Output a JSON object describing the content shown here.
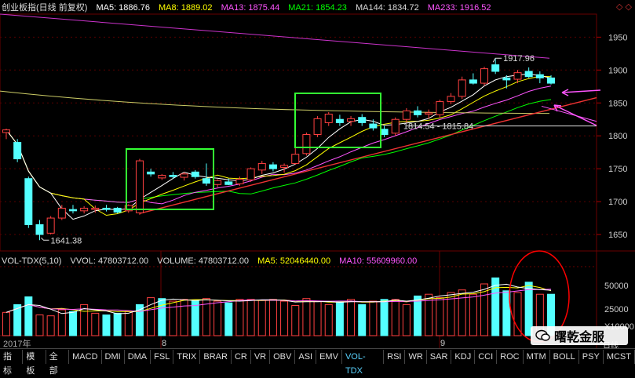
{
  "header": {
    "title": "创业板指(日线 前复权)",
    "ma5": "MA5: 1886.76",
    "ma8": "MA8: 1889.02",
    "ma13": "MA13: 1875.44",
    "ma21": "MA21: 1854.23",
    "ma144": "MA144: 1834.72",
    "ma233": "MA233: 1916.52",
    "corner_icons": "◇ ◇"
  },
  "volume_header": {
    "name": "VOL-TDX(5,10)",
    "vvol": "VVOL: 47803712.00",
    "volume": "VOLUME: 47803712.00",
    "ma5": "MA5: 52046440.00",
    "ma10": "MA10: 55609960.00"
  },
  "annotations": {
    "high": "1917.96",
    "low": "1641.38",
    "gap": "1814.54 - 1815.84"
  },
  "axis": {
    "price_ticks": [
      "1950",
      "1900",
      "1850",
      "1800",
      "1750",
      "1700",
      "1650"
    ],
    "volume_ticks": [
      "50000",
      "25000",
      "X10000"
    ],
    "month_labels": [
      "8",
      "9"
    ],
    "year_label": "2017年",
    "day_label": "日线"
  },
  "tabs": [
    "指标",
    "模板",
    "全部",
    "MACD",
    "DMI",
    "DMA",
    "FSL",
    "TRIX",
    "BRAR",
    "CR",
    "VR",
    "OBV",
    "ASI",
    "EMV",
    "VOL-TDX",
    "RSI",
    "WR",
    "SAR",
    "KDJ",
    "CCI",
    "ROC",
    "MTM",
    "BOLL",
    "PSY",
    "MCST"
  ],
  "active_tab": "VOL-TDX",
  "watermark": "曙乾金服",
  "colors": {
    "up": "#ff4040",
    "down": "#54ffff",
    "ma5": "#ffffff",
    "ma8": "#ffff00",
    "ma13": "#ff55ff",
    "ma21": "#00ff00",
    "ma144": "#cccc66",
    "ma233": "#cc33cc",
    "box": "#33ff33",
    "circle": "#ff0000"
  },
  "chart_data": {
    "type": "candlestick",
    "ylim": [
      1625,
      1985
    ],
    "candles": [
      {
        "o": 1805,
        "h": 1811,
        "l": 1795,
        "c": 1809
      },
      {
        "o": 1790,
        "h": 1795,
        "l": 1760,
        "c": 1765
      },
      {
        "o": 1735,
        "h": 1738,
        "l": 1660,
        "c": 1665
      },
      {
        "o": 1665,
        "h": 1672,
        "l": 1641.38,
        "c": 1650
      },
      {
        "o": 1652,
        "h": 1678,
        "l": 1650,
        "c": 1675
      },
      {
        "o": 1675,
        "h": 1695,
        "l": 1672,
        "c": 1690
      },
      {
        "o": 1688,
        "h": 1695,
        "l": 1682,
        "c": 1686
      },
      {
        "o": 1686,
        "h": 1693,
        "l": 1682,
        "c": 1690
      },
      {
        "o": 1688,
        "h": 1694,
        "l": 1683,
        "c": 1690
      },
      {
        "o": 1690,
        "h": 1695,
        "l": 1685,
        "c": 1688
      },
      {
        "o": 1690,
        "h": 1692,
        "l": 1682,
        "c": 1684
      },
      {
        "o": 1686,
        "h": 1696,
        "l": 1683,
        "c": 1694
      },
      {
        "o": 1683,
        "h": 1765,
        "l": 1680,
        "c": 1762
      },
      {
        "o": 1745,
        "h": 1750,
        "l": 1738,
        "c": 1742
      },
      {
        "o": 1736,
        "h": 1742,
        "l": 1733,
        "c": 1740
      },
      {
        "o": 1740,
        "h": 1745,
        "l": 1735,
        "c": 1738
      },
      {
        "o": 1737,
        "h": 1745,
        "l": 1732,
        "c": 1742
      },
      {
        "o": 1745,
        "h": 1748,
        "l": 1735,
        "c": 1738
      },
      {
        "o": 1735,
        "h": 1758,
        "l": 1724,
        "c": 1728
      },
      {
        "o": 1726,
        "h": 1734,
        "l": 1722,
        "c": 1732
      },
      {
        "o": 1730,
        "h": 1735,
        "l": 1725,
        "c": 1726
      },
      {
        "o": 1727,
        "h": 1738,
        "l": 1724,
        "c": 1734
      },
      {
        "o": 1733,
        "h": 1752,
        "l": 1730,
        "c": 1750
      },
      {
        "o": 1748,
        "h": 1762,
        "l": 1742,
        "c": 1758
      },
      {
        "o": 1756,
        "h": 1760,
        "l": 1746,
        "c": 1750
      },
      {
        "o": 1752,
        "h": 1758,
        "l": 1744,
        "c": 1755
      },
      {
        "o": 1758,
        "h": 1795,
        "l": 1756,
        "c": 1772
      },
      {
        "o": 1773,
        "h": 1805,
        "l": 1770,
        "c": 1802
      },
      {
        "o": 1802,
        "h": 1830,
        "l": 1798,
        "c": 1826
      },
      {
        "o": 1820,
        "h": 1836,
        "l": 1815,
        "c": 1833
      },
      {
        "o": 1825,
        "h": 1832,
        "l": 1815,
        "c": 1820
      },
      {
        "o": 1822,
        "h": 1830,
        "l": 1815,
        "c": 1826
      },
      {
        "o": 1828,
        "h": 1833,
        "l": 1815,
        "c": 1820
      },
      {
        "o": 1818,
        "h": 1825,
        "l": 1808,
        "c": 1812
      },
      {
        "o": 1810,
        "h": 1815,
        "l": 1798,
        "c": 1802
      },
      {
        "o": 1804,
        "h": 1828,
        "l": 1800,
        "c": 1825
      },
      {
        "o": 1825,
        "h": 1842,
        "l": 1820,
        "c": 1838
      },
      {
        "o": 1838,
        "h": 1845,
        "l": 1828,
        "c": 1832
      },
      {
        "o": 1833,
        "h": 1840,
        "l": 1826,
        "c": 1835
      },
      {
        "o": 1832,
        "h": 1855,
        "l": 1828,
        "c": 1852
      },
      {
        "o": 1852,
        "h": 1865,
        "l": 1848,
        "c": 1860
      },
      {
        "o": 1860,
        "h": 1890,
        "l": 1856,
        "c": 1885
      },
      {
        "o": 1885,
        "h": 1895,
        "l": 1878,
        "c": 1880
      },
      {
        "o": 1880,
        "h": 1905,
        "l": 1876,
        "c": 1902
      },
      {
        "o": 1908,
        "h": 1917.96,
        "l": 1894,
        "c": 1898
      },
      {
        "o": 1888,
        "h": 1892,
        "l": 1872,
        "c": 1885
      },
      {
        "o": 1886,
        "h": 1900,
        "l": 1880,
        "c": 1896
      },
      {
        "o": 1898,
        "h": 1904,
        "l": 1888,
        "c": 1890
      },
      {
        "o": 1893,
        "h": 1898,
        "l": 1880,
        "c": 1888
      },
      {
        "o": 1888,
        "h": 1892,
        "l": 1878,
        "c": 1880
      }
    ],
    "volume_ylim": [
      0,
      80000
    ],
    "volume": [
      {
        "v": 27000,
        "up": true
      },
      {
        "v": 36000,
        "up": false
      },
      {
        "v": 45000,
        "up": false
      },
      {
        "v": 24000,
        "up": true
      },
      {
        "v": 23000,
        "up": true
      },
      {
        "v": 30000,
        "up": true
      },
      {
        "v": 28000,
        "up": false
      },
      {
        "v": 36000,
        "up": true
      },
      {
        "v": 26000,
        "up": true
      },
      {
        "v": 24000,
        "up": false
      },
      {
        "v": 26000,
        "up": false
      },
      {
        "v": 28000,
        "up": true
      },
      {
        "v": 36000,
        "up": false
      },
      {
        "v": 44000,
        "up": true
      },
      {
        "v": 43000,
        "up": false
      },
      {
        "v": 40000,
        "up": true
      },
      {
        "v": 42000,
        "up": true
      },
      {
        "v": 40000,
        "up": false
      },
      {
        "v": 43000,
        "up": true
      },
      {
        "v": 40000,
        "up": true
      },
      {
        "v": 38000,
        "up": false
      },
      {
        "v": 42000,
        "up": true
      },
      {
        "v": 42000,
        "up": true
      },
      {
        "v": 41000,
        "up": true
      },
      {
        "v": 42000,
        "up": true
      },
      {
        "v": 40000,
        "up": true
      },
      {
        "v": 35000,
        "up": true
      },
      {
        "v": 43000,
        "up": true
      },
      {
        "v": 40000,
        "up": true
      },
      {
        "v": 36000,
        "up": true
      },
      {
        "v": 40000,
        "up": false
      },
      {
        "v": 42000,
        "up": true
      },
      {
        "v": 36000,
        "up": false
      },
      {
        "v": 40000,
        "up": true
      },
      {
        "v": 42000,
        "up": false
      },
      {
        "v": 42000,
        "up": true
      },
      {
        "v": 36000,
        "up": true
      },
      {
        "v": 46000,
        "up": false
      },
      {
        "v": 48000,
        "up": true
      },
      {
        "v": 44000,
        "up": true
      },
      {
        "v": 50000,
        "up": true
      },
      {
        "v": 53000,
        "up": true
      },
      {
        "v": 48000,
        "up": true
      },
      {
        "v": 60000,
        "up": true
      },
      {
        "v": 67000,
        "up": false
      },
      {
        "v": 52000,
        "up": false
      },
      {
        "v": 50000,
        "up": true
      },
      {
        "v": 62000,
        "up": false
      },
      {
        "v": 48000,
        "up": true
      },
      {
        "v": 48000,
        "up": false
      }
    ]
  }
}
